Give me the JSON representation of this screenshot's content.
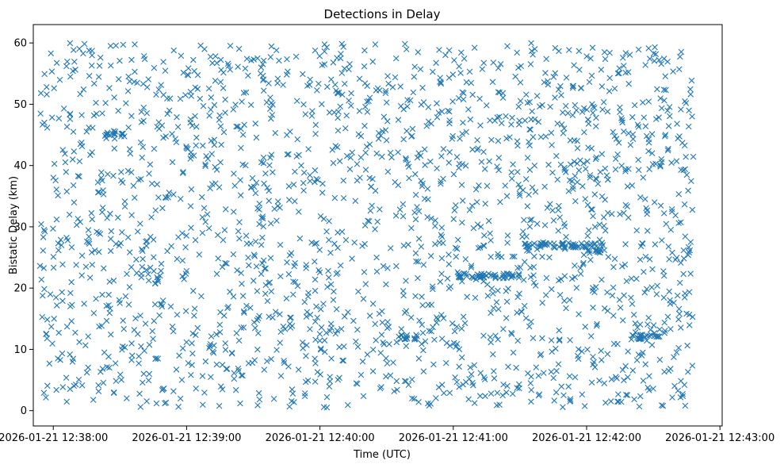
{
  "chart_data": {
    "type": "scatter",
    "title": "Detections in Delay",
    "xlabel": "Time (UTC)",
    "ylabel": "Bistatic Delay (km)",
    "marker": "x",
    "color": "#1f77b4",
    "grid": false,
    "legend": "none",
    "xlim": [
      "2026-01-21 12:37:51",
      "2026-01-21 12:43:01"
    ],
    "ylim": [
      -2.5,
      63
    ],
    "x_ticks": [
      "2026-01-21 12:38:00",
      "2026-01-21 12:39:00",
      "2026-01-21 12:40:00",
      "2026-01-21 12:41:00",
      "2026-01-21 12:42:00",
      "2026-01-21 12:43:00"
    ],
    "y_ticks": [
      0,
      10,
      20,
      30,
      40,
      50,
      60
    ],
    "time_range": [
      "2026-01-21 12:37:54",
      "2026-01-21 12:42:48"
    ],
    "delay_range": [
      0.5,
      60
    ],
    "point_count_estimate": 2000,
    "clusters": [
      {
        "t_start": "2026-01-21 12:42:20",
        "t_end": "2026-01-21 12:42:33",
        "delay": 12
      },
      {
        "t_start": "2026-01-21 12:41:32",
        "t_end": "2026-01-21 12:42:08",
        "delay": 27
      },
      {
        "t_start": "2026-01-21 12:42:00",
        "t_end": "2026-01-21 12:42:08",
        "delay": 26
      },
      {
        "t_start": "2026-01-21 12:41:02",
        "t_end": "2026-01-21 12:41:30",
        "delay": 22
      },
      {
        "t_start": "2026-01-21 12:38:23",
        "t_end": "2026-01-21 12:38:32",
        "delay": 45
      },
      {
        "t_start": "2026-01-21 12:40:35",
        "t_end": "2026-01-21 12:40:44",
        "delay": 12
      }
    ]
  }
}
